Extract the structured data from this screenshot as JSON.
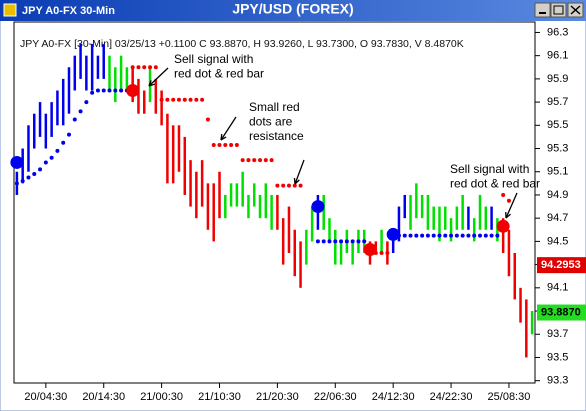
{
  "chart_data": {
    "type": "range-bar",
    "window_title": "JPY A0-FX 30-Min",
    "title": "JPY/USD (FOREX)",
    "header": "JPY A0-FX [30-Min] 03/25/13 +0.1100 C 93.8870, H 93.9260, L 93.7300, O 93.7830, V 8.4870K",
    "categories": [
      null,
      null,
      null,
      null,
      null,
      "20/04:30",
      null,
      null,
      null,
      null,
      null,
      null,
      null,
      null,
      null,
      "20/14:30",
      null,
      null,
      null,
      null,
      null,
      null,
      null,
      null,
      null,
      "21/00:30",
      null,
      null,
      null,
      null,
      null,
      null,
      null,
      null,
      null,
      "21/10:30",
      null,
      null,
      null,
      null,
      null,
      null,
      null,
      null,
      null,
      "21/20:30",
      null,
      null,
      null,
      null,
      null,
      null,
      null,
      null,
      null,
      "22/06:30",
      null,
      null,
      null,
      null,
      null,
      null,
      null,
      null,
      null,
      "24/12:30",
      null,
      null,
      null,
      null,
      null,
      null,
      null,
      null,
      null,
      "24/22:30",
      null,
      null,
      null,
      null,
      null,
      null,
      null,
      null,
      null,
      "25/08:30",
      null,
      null,
      null,
      null
    ],
    "high": [
      95.1,
      95.3,
      95.5,
      95.6,
      95.7,
      95.6,
      95.7,
      95.8,
      95.9,
      96.0,
      96.1,
      96.2,
      96.1,
      96.2,
      96.1,
      96.2,
      96.1,
      96.0,
      96.1,
      96.0,
      96.0,
      95.9,
      95.8,
      96.0,
      95.9,
      95.8,
      95.6,
      95.5,
      95.5,
      95.4,
      95.2,
      95.1,
      95.2,
      95.0,
      95.0,
      95.1,
      94.9,
      95.0,
      95.0,
      95.1,
      94.9,
      95.0,
      94.9,
      95.0,
      94.9,
      94.9,
      94.7,
      94.8,
      94.6,
      94.5,
      94.6,
      94.8,
      94.9,
      94.9,
      94.7,
      94.6,
      94.5,
      94.6,
      94.5,
      94.6,
      94.6,
      94.5,
      94.5,
      94.6,
      94.5,
      94.6,
      94.8,
      94.9,
      94.9,
      95.0,
      94.9,
      94.9,
      94.8,
      94.8,
      94.8,
      94.7,
      94.8,
      94.9,
      94.8,
      94.7,
      94.9,
      94.8,
      94.8,
      94.7,
      94.7,
      94.6,
      94.4,
      94.1,
      94.0,
      93.9
    ],
    "low": [
      94.9,
      95.0,
      95.1,
      95.3,
      95.4,
      95.3,
      95.4,
      95.5,
      95.5,
      95.6,
      95.8,
      95.9,
      95.8,
      95.8,
      95.9,
      95.9,
      95.8,
      95.7,
      95.8,
      95.8,
      95.7,
      95.6,
      95.6,
      95.7,
      95.6,
      95.5,
      95.0,
      95.0,
      95.1,
      94.9,
      94.8,
      94.7,
      94.8,
      94.6,
      94.5,
      94.7,
      94.7,
      94.8,
      94.8,
      94.8,
      94.7,
      94.8,
      94.7,
      94.7,
      94.6,
      94.6,
      94.3,
      94.4,
      94.2,
      94.1,
      94.3,
      94.5,
      94.6,
      94.6,
      94.5,
      94.3,
      94.3,
      94.4,
      94.3,
      94.4,
      94.4,
      94.3,
      94.4,
      94.4,
      94.3,
      94.4,
      94.5,
      94.7,
      94.6,
      94.7,
      94.7,
      94.6,
      94.6,
      94.5,
      94.6,
      94.5,
      94.6,
      94.6,
      94.6,
      94.5,
      94.6,
      94.6,
      94.6,
      94.5,
      94.4,
      94.2,
      94.0,
      93.8,
      93.5,
      93.7
    ],
    "bar_colors": [
      "#0000f0",
      "#0000f0",
      "#0000f0",
      "#0000f0",
      "#0000f0",
      "#0000f0",
      "#0000f0",
      "#0000f0",
      "#0000f0",
      "#0000f0",
      "#0000f0",
      "#0000f0",
      "#0000f0",
      "#0000f0",
      "#0000f0",
      "#0000f0",
      "#00e000",
      "#00e000",
      "#00e000",
      "#00e000",
      "#f00000",
      "#f00000",
      "#f00000",
      "#00e000",
      "#f00000",
      "#f00000",
      "#f00000",
      "#f00000",
      "#f00000",
      "#f00000",
      "#f00000",
      "#f00000",
      "#f00000",
      "#f00000",
      "#f00000",
      "#f00000",
      "#00e000",
      "#00e000",
      "#00e000",
      "#00e000",
      "#00e000",
      "#00e000",
      "#00e000",
      "#00e000",
      "#00e000",
      "#f00000",
      "#f00000",
      "#f00000",
      "#f00000",
      "#f00000",
      "#00e000",
      "#00e000",
      "#0000f0",
      "#00e000",
      "#00e000",
      "#00e000",
      "#00e000",
      "#00e000",
      "#00e000",
      "#00e000",
      "#00e000",
      "#f00000",
      "#f00000",
      "#00e000",
      "#f00000",
      "#0000f0",
      "#0000f0",
      "#0000f0",
      "#00e000",
      "#00e000",
      "#00e000",
      "#00e000",
      "#00e000",
      "#00e000",
      "#00e000",
      "#00e000",
      "#00e000",
      "#00e000",
      "#0000f0",
      "#00e000",
      "#00e000",
      "#00e000",
      "#0000f0",
      "#00e000",
      "#f00000",
      "#f00000",
      "#f00000",
      "#f00000",
      "#f00000",
      "#00e000"
    ],
    "series": [
      {
        "style": "small-dots",
        "color": "#0000f0",
        "values": [
          95.0,
          95.02,
          95.05,
          95.08,
          95.12,
          95.18,
          95.22,
          95.28,
          95.35,
          95.42,
          95.55,
          95.62,
          95.7,
          95.78,
          95.8,
          95.8,
          95.8,
          95.8,
          95.8,
          95.8,
          null,
          null,
          null,
          null,
          null,
          null,
          null,
          null,
          null,
          null,
          null,
          null,
          null,
          null,
          null,
          null,
          null,
          null,
          null,
          null,
          null,
          null,
          null,
          null,
          null,
          null,
          null,
          null,
          null,
          null,
          null,
          null,
          94.5,
          94.5,
          94.5,
          94.5,
          94.5,
          94.5,
          94.5,
          94.5,
          94.5,
          null,
          null,
          null,
          null,
          94.55,
          94.55,
          94.55,
          94.55,
          94.55,
          94.55,
          94.55,
          94.55,
          94.55,
          94.55,
          94.55,
          94.55,
          94.55,
          94.55,
          94.55,
          94.55,
          94.55,
          94.55,
          94.55,
          null,
          null,
          null,
          null,
          null,
          null
        ]
      },
      {
        "style": "small-dots",
        "color": "#f00000",
        "values": [
          null,
          null,
          null,
          null,
          null,
          null,
          null,
          null,
          null,
          null,
          null,
          null,
          null,
          null,
          null,
          null,
          null,
          null,
          null,
          null,
          96.0,
          96.0,
          96.0,
          96.0,
          96.0,
          95.72,
          95.72,
          95.72,
          95.72,
          95.72,
          95.72,
          95.72,
          95.72,
          95.55,
          95.33,
          95.33,
          95.33,
          95.33,
          95.33,
          95.2,
          95.2,
          95.2,
          95.2,
          95.2,
          95.2,
          94.98,
          94.98,
          94.98,
          94.98,
          94.98,
          null,
          null,
          null,
          null,
          null,
          null,
          null,
          null,
          null,
          null,
          null,
          94.4,
          94.4,
          94.4,
          94.4,
          null,
          null,
          null,
          null,
          null,
          null,
          null,
          null,
          null,
          null,
          null,
          null,
          null,
          null,
          null,
          null,
          null,
          null,
          null,
          94.9,
          94.85,
          null,
          null,
          null,
          null
        ]
      },
      {
        "style": "big-dots",
        "color": "#0000f0",
        "values": [
          95.18,
          null,
          null,
          null,
          null,
          null,
          null,
          null,
          null,
          null,
          null,
          null,
          null,
          null,
          null,
          null,
          null,
          null,
          null,
          null,
          null,
          null,
          null,
          null,
          null,
          null,
          null,
          null,
          null,
          null,
          null,
          null,
          null,
          null,
          null,
          null,
          null,
          null,
          null,
          null,
          null,
          null,
          null,
          null,
          null,
          null,
          null,
          null,
          null,
          null,
          null,
          null,
          94.8,
          null,
          null,
          null,
          null,
          null,
          null,
          null,
          null,
          null,
          null,
          null,
          null,
          94.56,
          null,
          null,
          null,
          null,
          null,
          null,
          null,
          null,
          null,
          null,
          null,
          null,
          null,
          null,
          null,
          null,
          null,
          null,
          null,
          null,
          null,
          null,
          null,
          null
        ]
      },
      {
        "style": "big-dots",
        "color": "#f00000",
        "values": [
          null,
          null,
          null,
          null,
          null,
          null,
          null,
          null,
          null,
          null,
          null,
          null,
          null,
          null,
          null,
          null,
          null,
          null,
          null,
          null,
          95.8,
          null,
          null,
          null,
          null,
          null,
          null,
          null,
          null,
          null,
          null,
          null,
          null,
          null,
          null,
          null,
          null,
          null,
          null,
          null,
          null,
          null,
          null,
          null,
          null,
          null,
          null,
          null,
          null,
          null,
          null,
          null,
          null,
          null,
          null,
          null,
          null,
          null,
          null,
          null,
          null,
          94.43,
          null,
          null,
          null,
          null,
          null,
          null,
          null,
          null,
          null,
          null,
          null,
          null,
          null,
          null,
          null,
          null,
          null,
          null,
          null,
          null,
          null,
          null,
          94.63,
          null,
          null,
          null,
          null,
          null
        ]
      }
    ],
    "price_tags": [
      {
        "value": 94.2953,
        "label": "94.2953",
        "color": "#e00000"
      },
      {
        "value": 93.887,
        "label": "93.8870",
        "color": "#22dd22"
      }
    ],
    "annotations": [
      {
        "lines": [
          "Sell signal with",
          "red dot & red bar"
        ]
      },
      {
        "lines": [
          "Small red",
          "dots are",
          "resistance"
        ]
      },
      {
        "lines": [
          "Sell signal with",
          "red dot & red bar"
        ]
      }
    ],
    "ylim": [
      93.28,
      96.39
    ],
    "yticks": [
      93.3,
      93.5,
      93.7,
      93.9,
      94.1,
      94.3,
      94.5,
      94.7,
      94.9,
      95.1,
      95.3,
      95.5,
      95.7,
      95.9,
      96.1,
      96.3
    ],
    "grid": false
  }
}
